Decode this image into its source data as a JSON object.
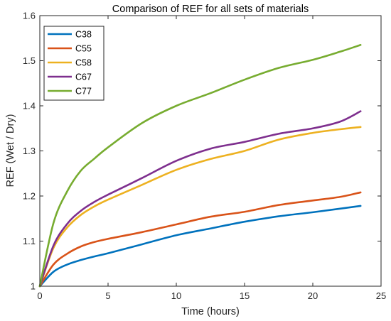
{
  "chart_data": {
    "type": "line",
    "title": "Comparison of REF for all sets of materials",
    "xlabel": "Time (hours)",
    "ylabel": "REF (Wet / Dry)",
    "xlim": [
      0,
      25
    ],
    "ylim": [
      1,
      1.6
    ],
    "xticks": [
      0,
      5,
      10,
      15,
      20,
      25
    ],
    "yticks": [
      1,
      1.1,
      1.2,
      1.3,
      1.4,
      1.5,
      1.6
    ],
    "xtick_labels": [
      "0",
      "5",
      "10",
      "15",
      "20",
      "25"
    ],
    "ytick_labels": [
      "1",
      "1.1",
      "1.2",
      "1.3",
      "1.4",
      "1.5",
      "1.6"
    ],
    "grid": false,
    "legend_position": "top-left",
    "x": [
      0,
      1,
      2,
      3,
      4,
      5,
      7.5,
      10,
      12.5,
      15,
      17.5,
      20,
      22,
      23.5
    ],
    "series": [
      {
        "name": "C38",
        "color": "#0072BD",
        "values": [
          1.0,
          1.032,
          1.048,
          1.058,
          1.066,
          1.073,
          1.093,
          1.113,
          1.128,
          1.143,
          1.155,
          1.164,
          1.172,
          1.178
        ]
      },
      {
        "name": "C55",
        "color": "#D95319",
        "values": [
          1.0,
          1.048,
          1.072,
          1.088,
          1.098,
          1.105,
          1.12,
          1.137,
          1.154,
          1.165,
          1.18,
          1.19,
          1.198,
          1.208
        ]
      },
      {
        "name": "C58",
        "color": "#EDB120",
        "values": [
          1.0,
          1.085,
          1.13,
          1.158,
          1.177,
          1.192,
          1.225,
          1.258,
          1.282,
          1.3,
          1.325,
          1.34,
          1.348,
          1.353
        ]
      },
      {
        "name": "C67",
        "color": "#7E2F8E",
        "values": [
          1.0,
          1.09,
          1.138,
          1.167,
          1.187,
          1.203,
          1.24,
          1.278,
          1.305,
          1.32,
          1.338,
          1.35,
          1.365,
          1.388
        ]
      },
      {
        "name": "C77",
        "color": "#77AC30",
        "values": [
          1.0,
          1.14,
          1.21,
          1.256,
          1.283,
          1.308,
          1.362,
          1.4,
          1.428,
          1.458,
          1.484,
          1.502,
          1.52,
          1.535
        ]
      }
    ]
  }
}
